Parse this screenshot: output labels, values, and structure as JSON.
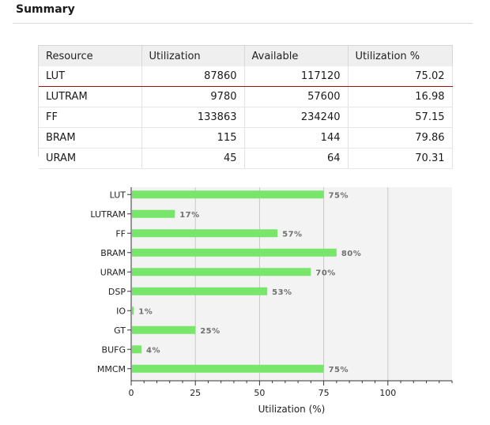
{
  "summary": {
    "title": "Summary"
  },
  "table": {
    "headers": [
      "Resource",
      "Utilization",
      "Available",
      "Utilization %"
    ],
    "rows": [
      [
        "LUT",
        "87860",
        "117120",
        "75.02"
      ],
      [
        "LUTRAM",
        "9780",
        "57600",
        "16.98"
      ],
      [
        "FF",
        "133863",
        "234240",
        "57.15"
      ],
      [
        "BRAM",
        "115",
        "144",
        "79.86"
      ],
      [
        "URAM",
        "45",
        "64",
        "70.31"
      ]
    ]
  },
  "chart_data": {
    "type": "bar",
    "orientation": "horizontal",
    "categories": [
      "LUT",
      "LUTRAM",
      "FF",
      "BRAM",
      "URAM",
      "DSP",
      "IO",
      "GT",
      "BUFG",
      "MMCM"
    ],
    "values": [
      75,
      17,
      57,
      80,
      70,
      53,
      1,
      25,
      4,
      75
    ],
    "value_labels": [
      "75%",
      "17%",
      "57%",
      "80%",
      "70%",
      "53%",
      "1%",
      "25%",
      "4%",
      "75%"
    ],
    "xlabel": "Utilization (%)",
    "xlim": [
      0,
      125
    ],
    "xticks": [
      0,
      25,
      50,
      75,
      100
    ],
    "grid": true,
    "colors": {
      "bar": "#77e66a",
      "plot_bg": "#f3f3f3",
      "grid": "#c8c8c8",
      "label": "#707070"
    }
  }
}
